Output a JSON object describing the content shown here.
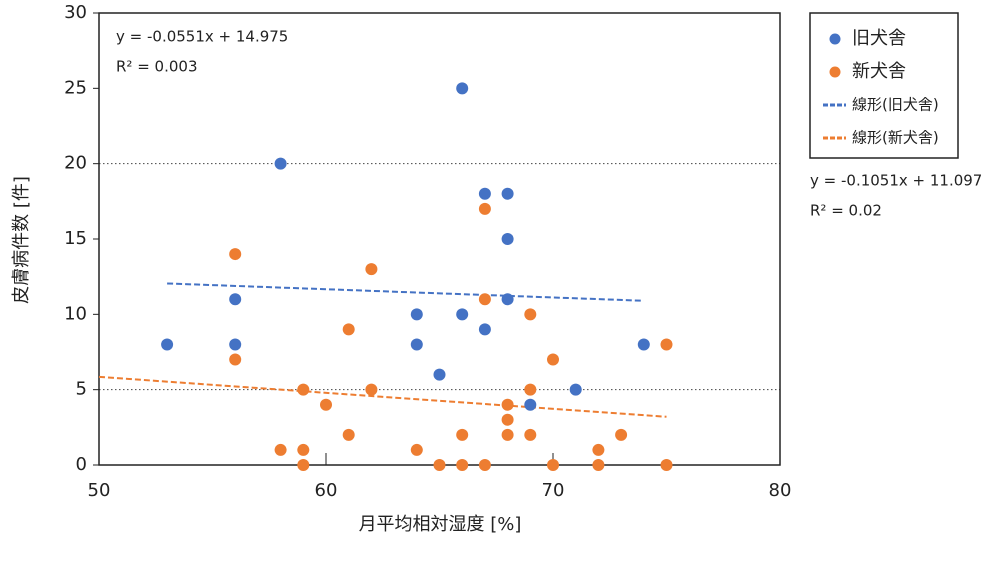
{
  "chart_data": {
    "type": "scatter",
    "x_label": "月平均相対湿度 [%]",
    "y_label": "皮膚病件数 [件]",
    "xlim": [
      50,
      80
    ],
    "xticks": [
      50,
      60,
      70,
      80
    ],
    "ylim": [
      0,
      30
    ],
    "yticks": [
      0,
      5,
      10,
      15,
      20,
      25,
      30
    ],
    "grid_lines": [
      5,
      20
    ],
    "series": [
      {
        "name": "旧犬舎",
        "color": "#4472c4",
        "x": [
          53,
          56,
          56,
          58,
          64,
          64,
          65,
          66,
          66,
          67,
          67,
          68,
          68,
          68,
          69,
          71,
          74
        ],
        "values": [
          8,
          11,
          8,
          20,
          10,
          8,
          6,
          25,
          10,
          18,
          9,
          18,
          15,
          11,
          4,
          5,
          8
        ]
      },
      {
        "name": "新犬舎",
        "color": "#ed7d31",
        "x": [
          56,
          56,
          58,
          59,
          59,
          59,
          60,
          61,
          61,
          62,
          62,
          64,
          65,
          66,
          66,
          67,
          67,
          67,
          68,
          68,
          68,
          69,
          69,
          69,
          70,
          70,
          72,
          72,
          73,
          75,
          75
        ],
        "values": [
          14,
          7,
          1,
          5,
          1,
          0,
          4,
          9,
          2,
          13,
          5,
          1,
          0,
          2,
          0,
          17,
          11,
          0,
          4,
          3,
          2,
          10,
          5,
          2,
          7,
          0,
          1,
          0,
          2,
          8,
          0
        ]
      }
    ],
    "trendlines": [
      {
        "name": "線形(旧犬舎)",
        "color": "#4472c4",
        "x": [
          53,
          74
        ],
        "values": [
          12.05,
          10.9
        ],
        "equation": "y = -0.0551x + 14.975",
        "r2": "R² = 0.003"
      },
      {
        "name": "線形(新犬舎)",
        "color": "#ed7d31",
        "x": [
          50,
          75
        ],
        "values": [
          5.85,
          3.2
        ],
        "equation": "y = -0.1051x + 11.097",
        "r2": "R² = 0.02"
      }
    ]
  }
}
